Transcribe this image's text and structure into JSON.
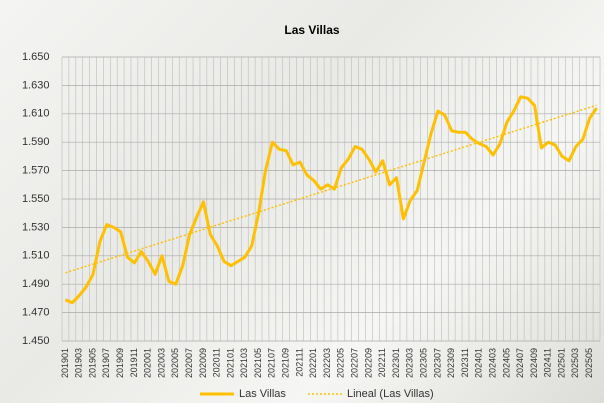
{
  "chart_data": {
    "type": "line",
    "title": "Las Villas",
    "categories": [
      "201901",
      null,
      "201903",
      null,
      "201905",
      null,
      "201907",
      null,
      "201909",
      null,
      "201911",
      null,
      "202001",
      null,
      "202003",
      null,
      "202005",
      null,
      "202007",
      null,
      "202009",
      null,
      "202011",
      null,
      "202101",
      null,
      "202103",
      null,
      "202105",
      null,
      "202107",
      null,
      "202109",
      null,
      "202111",
      null,
      "202201",
      null,
      "202203",
      null,
      "202205",
      null,
      "202207",
      null,
      "202209",
      null,
      "202211",
      null,
      "202301",
      null,
      "202303",
      null,
      "202305",
      null,
      "202307",
      null,
      "202309",
      null,
      "202311",
      null,
      "202401",
      null,
      "202403",
      null,
      "202405",
      null,
      "202407",
      null,
      "202409",
      null,
      "202411",
      null,
      "202501",
      null,
      "202503",
      null,
      "202505",
      null
    ],
    "series": [
      {
        "name": "Las Villas",
        "color": "#ffc000",
        "values": [
          1479,
          1477,
          1482,
          1488,
          1497,
          1520,
          1532,
          1530,
          1527,
          1509,
          1505,
          1513,
          1506,
          1497,
          1510,
          1492,
          1490,
          1503,
          1525,
          1537,
          1548,
          1525,
          1517,
          1506,
          1503,
          1506,
          1509,
          1517,
          1540,
          1570,
          1590,
          1585,
          1584,
          1574,
          1576,
          1567,
          1563,
          1557,
          1560,
          1557,
          1572,
          1578,
          1587,
          1585,
          1578,
          1569,
          1577,
          1560,
          1565,
          1536,
          1549,
          1556,
          1576,
          1596,
          1612,
          1609,
          1598,
          1597,
          1597,
          1592,
          1589,
          1587,
          1581,
          1589,
          1604,
          1612,
          1622,
          1621,
          1616,
          1586,
          1590,
          1588,
          1580,
          1577,
          1587,
          1592,
          1607,
          1614
        ]
      }
    ],
    "trendline": {
      "name": "Lineal (Las Villas)",
      "color": "#ffc000",
      "values": [
        1498,
        1616
      ]
    },
    "ylim": [
      1450,
      1650
    ],
    "yticks": [
      {
        "value": 1450,
        "label": "1.450"
      },
      {
        "value": 1470,
        "label": "1.470"
      },
      {
        "value": 1490,
        "label": "1.490"
      },
      {
        "value": 1510,
        "label": "1.510"
      },
      {
        "value": 1530,
        "label": "1.530"
      },
      {
        "value": 1550,
        "label": "1.550"
      },
      {
        "value": 1570,
        "label": "1.570"
      },
      {
        "value": 1590,
        "label": "1.590"
      },
      {
        "value": 1610,
        "label": "1.610"
      },
      {
        "value": 1630,
        "label": "1.630"
      },
      {
        "value": 1650,
        "label": "1.650"
      }
    ],
    "grid": true
  }
}
